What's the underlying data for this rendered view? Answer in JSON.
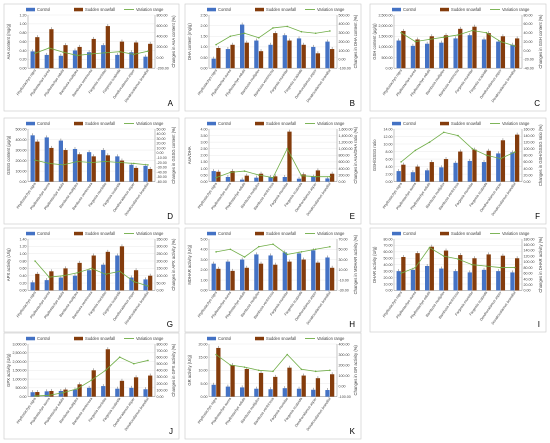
{
  "legend": {
    "control": "Control",
    "sudden": "Sudden snowfall",
    "variation": "Variation range"
  },
  "colors": {
    "control": "#4472c4",
    "sudden": "#843c0c",
    "variation": "#70ad47",
    "star": "#c00000"
  },
  "categories": [
    "Phyllostachys nigra",
    "Phyllostachys aurea",
    "Phyllostachys edulis",
    "Bambusa multiplex",
    "Bambusa ventricosa",
    "Fargesia murielae",
    "Fargesia scabrida",
    "Dendrocalamus asper",
    "Dendrocalamus brandisii"
  ],
  "chart_data": [
    {
      "type": "bar",
      "panel_label": "A",
      "ylabel": "AsA content (mg/g)",
      "y2label": "Changes in AsA content (%)",
      "ylim": [
        0,
        1.2
      ],
      "yticks": [
        "0.00",
        "0.20",
        "0.40",
        "0.60",
        "0.80",
        "1.00",
        "1.20"
      ],
      "y2lim": [
        -200,
        800
      ],
      "y2ticks": [
        "-200.00",
        "0.00",
        "200.00",
        "400.00",
        "600.00",
        "800.00"
      ],
      "series": [
        {
          "name": "Control",
          "values": [
            0.38,
            0.3,
            0.28,
            0.4,
            0.36,
            0.52,
            0.3,
            0.36,
            0.26
          ]
        },
        {
          "name": "Sudden snowfall",
          "values": [
            0.7,
            0.88,
            0.52,
            0.48,
            0.66,
            0.95,
            0.6,
            0.58,
            0.55
          ]
        },
        {
          "name": "Variation range",
          "values": [
            80,
            180,
            100,
            40,
            70,
            90,
            110,
            60,
            120
          ]
        }
      ]
    },
    {
      "type": "bar",
      "panel_label": "B",
      "ylabel": "DHA content (mg/g)",
      "y2label": "Changes in DHA content (%)",
      "ylim": [
        0,
        2.5
      ],
      "yticks": [
        "0.00",
        "0.50",
        "1.00",
        "1.50",
        "2.00",
        "2.50"
      ],
      "y2lim": [
        -200,
        500
      ],
      "y2ticks": [
        "-100.00",
        "0.00",
        "100.00",
        "200.00",
        "300.00",
        "400.00",
        "500.00"
      ],
      "series": [
        {
          "name": "Control",
          "values": [
            0.45,
            0.9,
            2.05,
            1.3,
            1.1,
            1.55,
            1.4,
            1.0,
            1.25
          ]
        },
        {
          "name": "Sudden snowfall",
          "values": [
            0.95,
            1.1,
            1.2,
            0.8,
            1.65,
            1.3,
            1.1,
            0.7,
            0.9
          ]
        },
        {
          "name": "Variation range",
          "values": [
            110,
            220,
            260,
            200,
            330,
            350,
            280,
            260,
            290
          ]
        }
      ]
    },
    {
      "type": "bar",
      "panel_label": "C",
      "ylabel": "GSH content (μg/g)",
      "y2label": "Changes in GSH content (%)",
      "ylim": [
        0,
        2500
      ],
      "yticks": [
        "0.00",
        "500.00",
        "1,000.00",
        "1,500.00",
        "2,000.00",
        "2,500.00"
      ],
      "y2lim": [
        -40,
        80
      ],
      "y2ticks": [
        "-40.00",
        "-20.00",
        "0.00",
        "20.00",
        "40.00",
        "60.00",
        "80.00"
      ],
      "series": [
        {
          "name": "Control",
          "values": [
            1300,
            1050,
            1150,
            1200,
            1400,
            1550,
            1350,
            1250,
            1100
          ]
        },
        {
          "name": "Sudden snowfall",
          "values": [
            1750,
            1350,
            1500,
            1550,
            1850,
            1950,
            1650,
            1500,
            1400
          ]
        },
        {
          "name": "Variation range",
          "values": [
            40,
            20,
            25,
            30,
            35,
            45,
            40,
            20,
            10
          ]
        }
      ]
    },
    {
      "type": "bar",
      "panel_label": "D",
      "ylabel": "GSSG content (μg/g)",
      "y2label": "Changes in GSSG content (%)",
      "ylim": [
        0,
        500
      ],
      "yticks": [
        "0.00",
        "100.00",
        "200.00",
        "300.00",
        "400.00",
        "500.00"
      ],
      "y2lim": [
        -60,
        50
      ],
      "y2ticks": [
        "-60.00",
        "-50.00",
        "-40.00",
        "-30.00",
        "-20.00",
        "-10.00",
        "0.00",
        "10.00",
        "20.00",
        "30.00",
        "40.00",
        "50.00"
      ],
      "series": [
        {
          "name": "Control",
          "values": [
            440,
            420,
            390,
            310,
            280,
            300,
            240,
            160,
            150
          ]
        },
        {
          "name": "Sudden snowfall",
          "values": [
            380,
            320,
            300,
            260,
            240,
            250,
            200,
            130,
            120
          ]
        },
        {
          "name": "Variation range",
          "values": [
            -15,
            -22,
            -25,
            -18,
            -20,
            -18,
            -20,
            -22,
            -25
          ]
        }
      ]
    },
    {
      "type": "bar",
      "panel_label": "E",
      "ylabel": "AsA/DHA",
      "y2label": "Changes in AsA/DHA ratio (%)",
      "ylim": [
        0,
        4
      ],
      "yticks": [
        "0.00",
        "0.50",
        "1.00",
        "1.50",
        "2.00",
        "2.50",
        "3.00",
        "3.50",
        "4.00"
      ],
      "y2lim": [
        0,
        1600
      ],
      "y2ticks": [
        "0.00",
        "200.00",
        "400.00",
        "600.00",
        "800.00",
        "1,000.00",
        "1,200.00",
        "1,400.00",
        "1,600.00"
      ],
      "series": [
        {
          "name": "Control",
          "values": [
            0.8,
            0.35,
            0.15,
            0.3,
            0.35,
            0.35,
            0.22,
            0.38,
            0.24
          ]
        },
        {
          "name": "Sudden snowfall",
          "values": [
            0.75,
            0.8,
            0.45,
            0.6,
            0.4,
            3.8,
            0.55,
            0.85,
            0.6
          ]
        },
        {
          "name": "Variation range",
          "values": [
            120,
            280,
            320,
            200,
            120,
            1000,
            180,
            150,
            150
          ]
        }
      ]
    },
    {
      "type": "bar",
      "panel_label": "F",
      "ylabel": "GSH/GSSG ratio",
      "y2label": "Changes in GSH/GSSG ratio (%)",
      "ylim": [
        0,
        14
      ],
      "yticks": [
        "0.00",
        "2.00",
        "4.00",
        "6.00",
        "8.00",
        "10.00",
        "12.00",
        "14.00"
      ],
      "y2lim": [
        0,
        160
      ],
      "y2ticks": [
        "0.00",
        "20.00",
        "40.00",
        "60.00",
        "80.00",
        "100.00",
        "120.00",
        "140.00",
        "160.00"
      ],
      "series": [
        {
          "name": "Control",
          "values": [
            2.8,
            2.5,
            3.0,
            3.8,
            5.0,
            5.5,
            5.2,
            7.5,
            7.8
          ]
        },
        {
          "name": "Sudden snowfall",
          "values": [
            4.5,
            4.0,
            5.2,
            6.0,
            8.0,
            8.5,
            8.2,
            11.0,
            12.5
          ]
        },
        {
          "name": "Variation range",
          "values": [
            60,
            95,
            120,
            150,
            140,
            100,
            80,
            70,
            90
          ]
        }
      ]
    },
    {
      "type": "bar",
      "panel_label": "G",
      "ylabel": "APX activity (U/g)",
      "y2label": "Changes in APX activity (%)",
      "ylim": [
        0,
        1.4
      ],
      "yticks": [
        "0.00",
        "0.20",
        "0.40",
        "0.60",
        "0.80",
        "1.00",
        "1.20",
        "1.40"
      ],
      "y2lim": [
        0,
        350
      ],
      "y2ticks": [
        "0.00",
        "50.00",
        "100.00",
        "150.00",
        "200.00",
        "250.00",
        "300.00",
        "350.00"
      ],
      "series": [
        {
          "name": "Control",
          "values": [
            0.22,
            0.28,
            0.35,
            0.4,
            0.55,
            0.7,
            0.95,
            0.35,
            0.3
          ]
        },
        {
          "name": "Sudden snowfall",
          "values": [
            0.45,
            0.52,
            0.6,
            0.75,
            0.95,
            1.05,
            1.2,
            0.55,
            0.4
          ]
        },
        {
          "name": "Variation range",
          "values": [
            200,
            90,
            100,
            120,
            150,
            110,
            130,
            60,
            30
          ]
        }
      ]
    },
    {
      "type": "bar",
      "panel_label": "H",
      "ylabel": "MDHAR activity (U/g)",
      "y2label": "Changes in MDHAR activity (%)",
      "ylim": [
        0,
        5
      ],
      "yticks": [
        "0.00",
        "1.00",
        "2.00",
        "3.00",
        "4.00",
        "5.00"
      ],
      "y2lim": [
        -30,
        70
      ],
      "y2ticks": [
        "-30.00",
        "-10.00",
        "10.00",
        "30.00",
        "50.00",
        "70.00"
      ],
      "series": [
        {
          "name": "Control",
          "values": [
            2.6,
            2.8,
            3.0,
            3.5,
            3.4,
            3.7,
            3.6,
            3.9,
            3.2
          ]
        },
        {
          "name": "Sudden snowfall",
          "values": [
            2.1,
            1.9,
            2.2,
            2.6,
            2.5,
            2.8,
            3.0,
            2.7,
            2.2
          ]
        },
        {
          "name": "Variation range",
          "values": [
            45,
            50,
            35,
            55,
            60,
            40,
            45,
            50,
            55
          ]
        }
      ]
    },
    {
      "type": "bar",
      "panel_label": "I",
      "ylabel": "DHAR activity (U/g)",
      "y2label": "Changes in DHAR activity (%)",
      "ylim": [
        0,
        80
      ],
      "yticks": [
        "0.00",
        "10.00",
        "20.00",
        "30.00",
        "40.00",
        "50.00",
        "60.00",
        "70.00",
        "80.00"
      ],
      "y2lim": [
        0,
        180
      ],
      "y2ticks": [
        "0.00",
        "20.00",
        "40.00",
        "60.00",
        "80.00",
        "100.00",
        "120.00",
        "140.00",
        "160.00",
        "180.00"
      ],
      "series": [
        {
          "name": "Control",
          "values": [
            30,
            32,
            38,
            34,
            30,
            28,
            32,
            30,
            28
          ]
        },
        {
          "name": "Sudden snowfall",
          "values": [
            52,
            58,
            68,
            62,
            55,
            50,
            56,
            54,
            50
          ]
        },
        {
          "name": "Variation range",
          "values": [
            60,
            80,
            150,
            120,
            110,
            90,
            85,
            80,
            80
          ]
        }
      ]
    },
    {
      "type": "bar",
      "panel_label": "J",
      "ylabel": "GPX activity (U/g)",
      "y2label": "Changes in GPX activity (%)",
      "ylim": [
        0,
        3000
      ],
      "yticks": [
        "0.00",
        "500.00",
        "1,000.00",
        "1,500.00",
        "2,000.00",
        "2,500.00",
        "3,000.00"
      ],
      "y2lim": [
        0,
        800
      ],
      "y2ticks": [
        "0.00",
        "100.00",
        "200.00",
        "300.00",
        "400.00",
        "500.00",
        "600.00",
        "700.00",
        "800.00"
      ],
      "series": [
        {
          "name": "Control",
          "values": [
            250,
            300,
            320,
            400,
            500,
            600,
            450,
            500,
            420
          ]
        },
        {
          "name": "Sudden snowfall",
          "values": [
            260,
            320,
            400,
            700,
            1500,
            2700,
            900,
            1100,
            1200
          ]
        },
        {
          "name": "Variation range",
          "values": [
            10,
            20,
            60,
            120,
            250,
            400,
            600,
            500,
            550
          ]
        }
      ]
    },
    {
      "type": "bar",
      "panel_label": "K",
      "ylabel": "GR activity (U/g)",
      "y2label": "Changes in GR activity (%)",
      "ylim": [
        0,
        20
      ],
      "yticks": [
        "0.00",
        "5.00",
        "10.00",
        "15.00",
        "20.00"
      ],
      "y2lim": [
        -100,
        400
      ],
      "y2ticks": [
        "-100.00",
        "0.00",
        "100.00",
        "200.00",
        "300.00",
        "400.00"
      ],
      "series": [
        {
          "name": "Control",
          "values": [
            4.5,
            3.8,
            3.5,
            3.0,
            2.8,
            3.2,
            3.0,
            2.6,
            2.5
          ]
        },
        {
          "name": "Sudden snowfall",
          "values": [
            18.5,
            12.0,
            10.5,
            9.0,
            7.5,
            11.0,
            8.0,
            7.0,
            8.5
          ]
        },
        {
          "name": "Variation range",
          "values": [
            300,
            200,
            180,
            150,
            140,
            300,
            160,
            140,
            150
          ]
        }
      ]
    }
  ]
}
